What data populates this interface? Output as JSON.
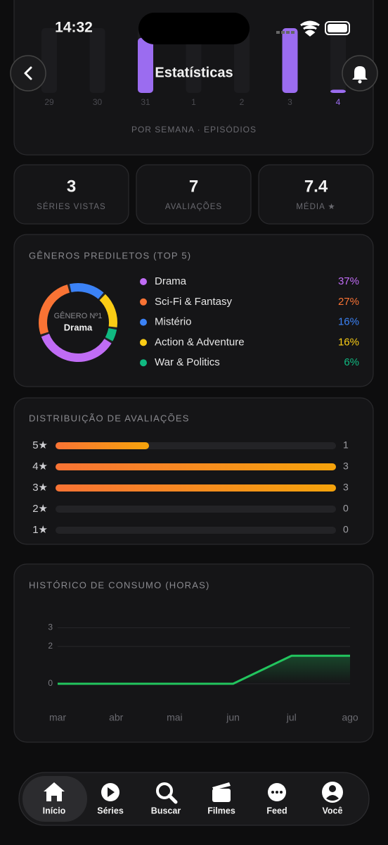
{
  "status_bar": {
    "time": "14:32"
  },
  "header": {
    "title": "Estatísticas"
  },
  "weekly": {
    "categories": [
      "29",
      "30",
      "31",
      "1",
      "2",
      "3",
      "4"
    ],
    "values": [
      0,
      0,
      17,
      0,
      0,
      20,
      1
    ],
    "ylim": [
      0,
      20
    ],
    "color": "#9b6cf0",
    "caption": "POR SEMANA · EPISÓDIOS"
  },
  "stats": [
    {
      "value": "3",
      "label": "SÉRIES VISTAS"
    },
    {
      "value": "7",
      "label": "AVALIAÇÕES"
    },
    {
      "value": "7.4",
      "label": "MÉDIA ★"
    }
  ],
  "genres": {
    "title": "GÊNEROS PREDILETOS (TOP 5)",
    "center_label": "GÊNERO Nº1",
    "center_value": "Drama",
    "categories": [
      "Drama",
      "Sci-Fi & Fantasy",
      "Mistério",
      "Action & Adventure",
      "War & Politics"
    ],
    "values": [
      37,
      27,
      16,
      16,
      6
    ],
    "value_labels": [
      "37%",
      "27%",
      "16%",
      "16%",
      "6%"
    ],
    "colors": [
      "#c06cf5",
      "#f97334",
      "#3b82f6",
      "#facc15",
      "#10b981"
    ]
  },
  "ratings": {
    "title": "DISTRIBUIÇÃO DE AVALIAÇÕES",
    "categories": [
      "5★",
      "4★",
      "3★",
      "2★",
      "1★"
    ],
    "values": [
      1,
      3,
      3,
      0,
      0
    ],
    "xlim": [
      0,
      3
    ]
  },
  "history": {
    "title": "HISTÓRICO DE CONSUMO (HORAS)",
    "categories": [
      "mar",
      "abr",
      "mai",
      "jun",
      "jul",
      "ago"
    ],
    "values": [
      0,
      0,
      0,
      0,
      1.5,
      1.5
    ],
    "ylim": [
      0,
      3
    ],
    "yticks": [
      0,
      2,
      3
    ],
    "color": "#22c55e"
  },
  "tab_bar": {
    "items": [
      "Início",
      "Séries",
      "Buscar",
      "Filmes",
      "Feed",
      "Você"
    ]
  }
}
